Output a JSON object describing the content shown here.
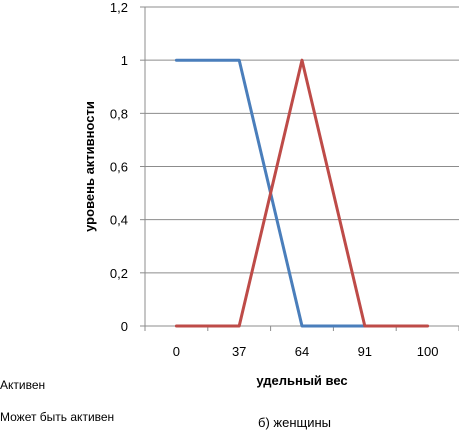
{
  "chart_data": {
    "type": "line",
    "x": [
      "0",
      "37",
      "64",
      "91",
      "100"
    ],
    "xlabel": "удельный вес",
    "ylabel": "уровень активности",
    "ylim": [
      0,
      1.2
    ],
    "yticks": [
      "0",
      "0,2",
      "0,4",
      "0,6",
      "0,8",
      "1",
      "1,2"
    ],
    "grid": "horizontal",
    "series": [
      {
        "name": "Активен",
        "color": "#4a7ebb",
        "values": [
          1,
          1,
          0,
          0,
          null
        ]
      },
      {
        "name": "Может быть активен",
        "color": "#be4b48",
        "values": [
          0,
          0,
          1,
          0,
          0
        ]
      }
    ],
    "caption": "б) женщины"
  }
}
